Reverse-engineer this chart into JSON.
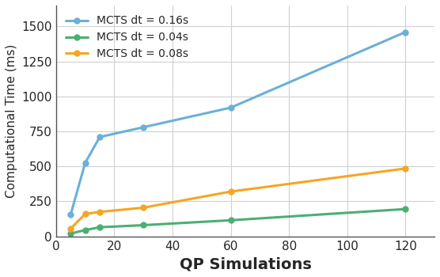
{
  "x": [
    5,
    10,
    15,
    30,
    60,
    120
  ],
  "series": [
    {
      "label": "MCTS dt = 0.16s",
      "color": "#6ab0d8",
      "values": [
        155,
        525,
        710,
        780,
        920,
        1460
      ]
    },
    {
      "label": "MCTS dt = 0.04s",
      "color": "#4caf72",
      "values": [
        20,
        45,
        65,
        80,
        115,
        195
      ]
    },
    {
      "label": "MCTS dt = 0.08s",
      "color": "#f5a623",
      "values": [
        55,
        160,
        175,
        205,
        320,
        485
      ]
    }
  ],
  "xlabel": "QP Simulations",
  "ylabel": "Computational Time (ms)",
  "xlim": [
    0,
    130
  ],
  "ylim": [
    0,
    1650
  ],
  "xticks": [
    0,
    20,
    40,
    60,
    80,
    100,
    120
  ],
  "yticks": [
    0,
    250,
    500,
    750,
    1000,
    1250,
    1500
  ],
  "grid": true,
  "legend_loc": "upper left",
  "bg_color": "#ffffff",
  "grid_color": "#d0d0d0",
  "marker": "o",
  "marker_size": 5,
  "linewidth": 2.2,
  "xlabel_fontsize": 14,
  "ylabel_fontsize": 11,
  "tick_fontsize": 11,
  "legend_fontsize": 10
}
